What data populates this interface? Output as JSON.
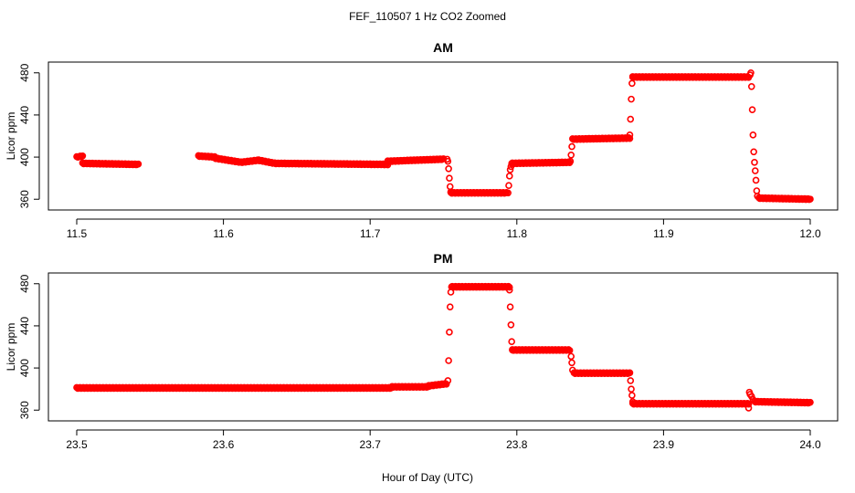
{
  "figure": {
    "title": "FEF_110507  1 Hz CO2 Zoomed",
    "xlabel": "Hour of Day (UTC)",
    "point_color": "#ff0000"
  },
  "chart_data": [
    {
      "type": "scatter",
      "title": "AM",
      "xlabel": "",
      "ylabel": "Licor ppm",
      "xlim": [
        11.5,
        12.0
      ],
      "ylim": [
        355,
        485
      ],
      "xticks": [
        "11.5",
        "11.6",
        "11.7",
        "11.8",
        "11.9",
        "12.0"
      ],
      "yticks": [
        "360",
        "400",
        "440",
        "480"
      ],
      "grid": false,
      "series": [
        {
          "color": "#ff0000",
          "segments": [
            {
              "x": [
                11.5,
                11.504
              ],
              "y": [
                400,
                401
              ]
            },
            {
              "x": [
                11.504,
                11.542
              ],
              "y": [
                394,
                393
              ]
            },
            {
              "x": [
                11.583,
                11.594
              ],
              "y": [
                401,
                400
              ]
            },
            {
              "x": [
                11.594,
                11.612
              ],
              "y": [
                399,
                395
              ]
            },
            {
              "x": [
                11.612,
                11.624
              ],
              "y": [
                395,
                397
              ]
            },
            {
              "x": [
                11.624,
                11.635
              ],
              "y": [
                397,
                394
              ]
            },
            {
              "x": [
                11.635,
                11.712
              ],
              "y": [
                394,
                393
              ]
            },
            {
              "x": [
                11.712,
                11.75
              ],
              "y": [
                396,
                398
              ]
            },
            {
              "x": [
                11.755,
                11.793
              ],
              "y": [
                366,
                366
              ]
            },
            {
              "x": [
                11.797,
                11.836
              ],
              "y": [
                394,
                395
              ]
            },
            {
              "x": [
                11.838,
                11.877
              ],
              "y": [
                417,
                418
              ]
            },
            {
              "x": [
                11.879,
                11.958
              ],
              "y": [
                476,
                476
              ]
            },
            {
              "x": [
                11.965,
                12.0
              ],
              "y": [
                361,
                360
              ]
            }
          ],
          "transitions": [
            {
              "x": [
                11.7525,
                11.753,
                11.7535,
                11.754,
                11.7545,
                11.755
              ],
              "y": [
                398,
                396,
                389,
                380,
                372,
                367
              ]
            },
            {
              "x": [
                11.794,
                11.7945,
                11.795,
                11.7955,
                11.796,
                11.7965
              ],
              "y": [
                366,
                373,
                382,
                388,
                391,
                394
              ]
            },
            {
              "x": [
                11.8365,
                11.837,
                11.8375
              ],
              "y": [
                396,
                402,
                410
              ]
            },
            {
              "x": [
                11.877,
                11.8775,
                11.878,
                11.8785,
                11.879
              ],
              "y": [
                421,
                436,
                455,
                470,
                476
              ]
            },
            {
              "x": [
                11.959,
                11.9595,
                11.96,
                11.9605,
                11.961,
                11.9615,
                11.962,
                11.9625,
                11.963,
                11.9635,
                11.964
              ],
              "y": [
                478,
                480,
                467,
                445,
                421,
                405,
                395,
                387,
                378,
                368,
                363
              ]
            }
          ]
        }
      ]
    },
    {
      "type": "scatter",
      "title": "PM",
      "xlabel": "",
      "ylabel": "Licor ppm",
      "xlim": [
        23.5,
        24.0
      ],
      "ylim": [
        355,
        485
      ],
      "xticks": [
        "23.5",
        "23.6",
        "23.7",
        "23.8",
        "23.9",
        "24.0"
      ],
      "yticks": [
        "360",
        "400",
        "440",
        "480"
      ],
      "grid": false,
      "series": [
        {
          "color": "#ff0000",
          "segments": [
            {
              "x": [
                23.5,
                23.715
              ],
              "y": [
                381,
                381
              ]
            },
            {
              "x": [
                23.715,
                23.74
              ],
              "y": [
                382,
                382
              ]
            },
            {
              "x": [
                23.74,
                23.752
              ],
              "y": [
                383,
                385
              ]
            },
            {
              "x": [
                23.756,
                23.795
              ],
              "y": [
                477,
                477
              ]
            },
            {
              "x": [
                23.797,
                23.836
              ],
              "y": [
                417,
                417
              ]
            },
            {
              "x": [
                23.839,
                23.877
              ],
              "y": [
                395,
                395
              ]
            },
            {
              "x": [
                23.879,
                23.958
              ],
              "y": [
                366,
                366
              ]
            },
            {
              "x": [
                23.962,
                24.0
              ],
              "y": [
                368,
                367
              ]
            }
          ],
          "transitions": [
            {
              "x": [
                23.753,
                23.7535,
                23.754,
                23.7545,
                23.755,
                23.7555
              ],
              "y": [
                388,
                407,
                434,
                458,
                472,
                477
              ]
            },
            {
              "x": [
                23.795,
                23.7955,
                23.796,
                23.7965,
                23.797
              ],
              "y": [
                474,
                458,
                441,
                425,
                417
              ]
            },
            {
              "x": [
                23.837,
                23.8375,
                23.838
              ],
              "y": [
                411,
                405,
                398
              ]
            },
            {
              "x": [
                23.8775,
                23.878,
                23.8785,
                23.879
              ],
              "y": [
                388,
                380,
                374,
                368
              ]
            },
            {
              "x": [
                23.958,
                23.9585,
                23.959,
                23.96,
                23.961
              ],
              "y": [
                362,
                377,
                375,
                373,
                370
              ]
            }
          ]
        }
      ]
    }
  ]
}
